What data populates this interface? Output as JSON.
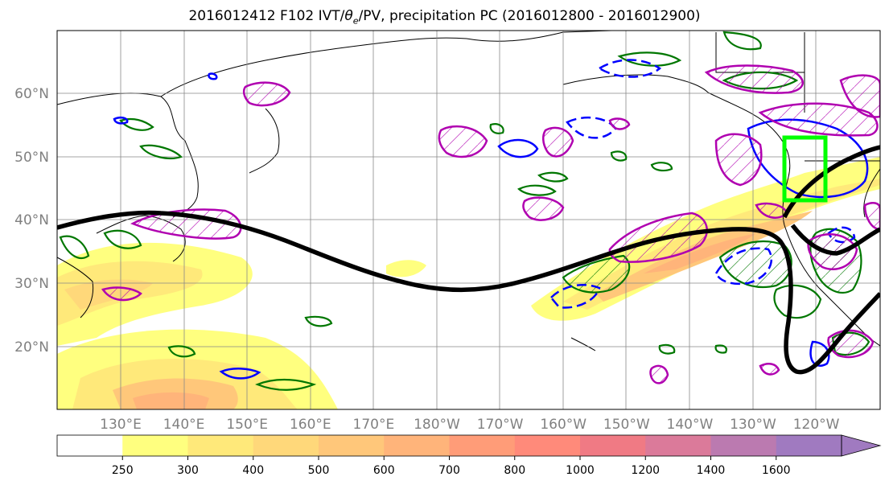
{
  "title": {
    "prefix": "2016012412 F102 IVT/",
    "theta": "θ",
    "theta_sub": "e",
    "suffix": "/PV, precipitation PC (2016012800 - 2016012900)"
  },
  "map": {
    "lon_labels": [
      "130°E",
      "140°E",
      "150°E",
      "160°E",
      "170°E",
      "180°W",
      "170°W",
      "160°W",
      "150°W",
      "140°W",
      "130°W",
      "120°W"
    ],
    "lat_labels": [
      "60°N",
      "50°N",
      "40°N",
      "30°N",
      "20°N"
    ],
    "colors": {
      "positive_pc": "#b000b0",
      "negative_pc": "#0000ff",
      "pv_contour": "#007700",
      "jet_line": "#000000",
      "target_box": "#00ff00",
      "grid": "#888888"
    }
  },
  "colorbar": {
    "ticks": [
      "250",
      "300",
      "400",
      "500",
      "600",
      "700",
      "800",
      "1000",
      "1200",
      "1400",
      "1600"
    ],
    "colors": [
      "#ffffff",
      "#ffff7f",
      "#ffe97a",
      "#ffd87a",
      "#ffc77a",
      "#ffb47a",
      "#ff9c78",
      "#ff8a7a",
      "#f07a84",
      "#db7a9a",
      "#bb7ab0",
      "#a07ac0"
    ]
  }
}
